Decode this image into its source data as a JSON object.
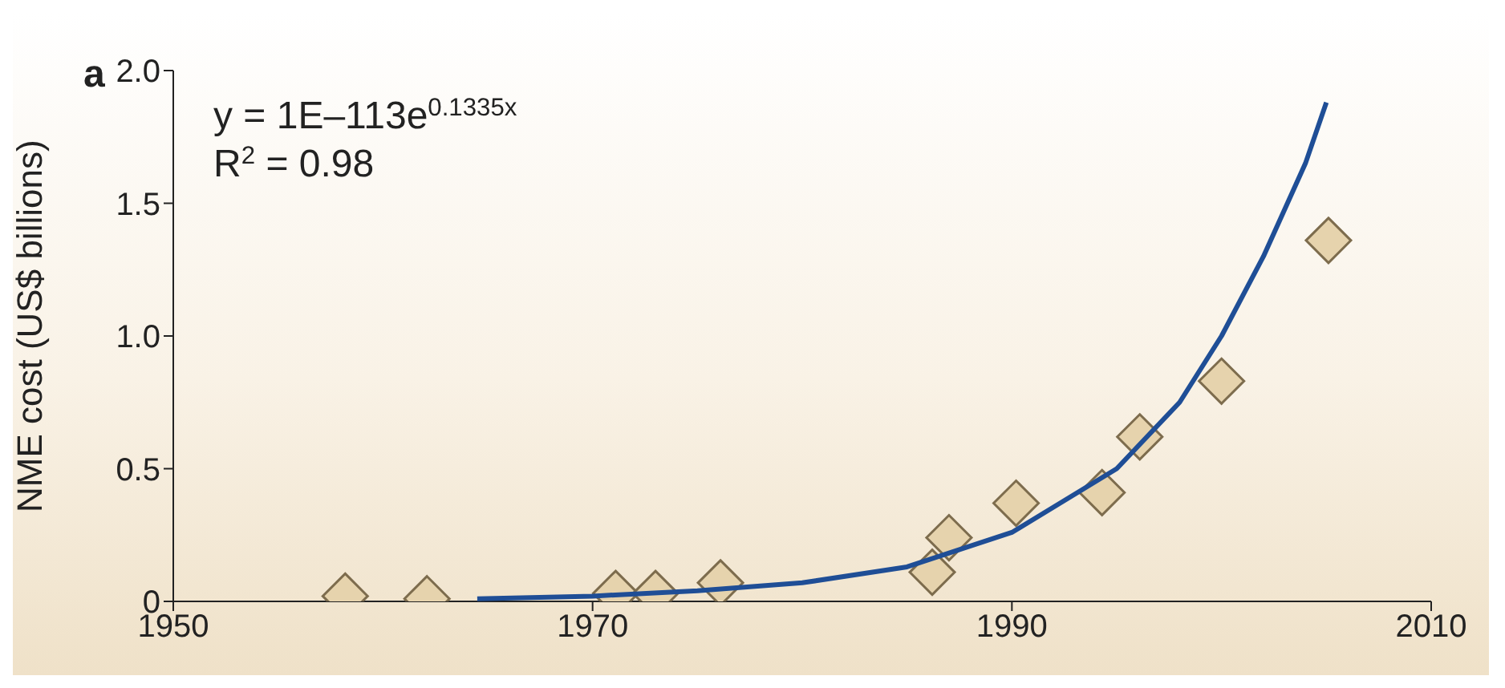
{
  "chart_data": {
    "type": "scatter",
    "ylabel": "NME cost (US$ billions)",
    "annotations": [
      "a",
      "y = 1E–113e$^{0.1335x}$",
      "R$^{2}$ = 0.98"
    ],
    "xlim": [
      1950,
      2010
    ],
    "xticks": [
      1950,
      1970,
      1990,
      2010
    ],
    "ylim": [
      0,
      2
    ],
    "yticks": [
      0,
      0.5,
      {
        "value": 1,
        "label": "1.0"
      },
      1.5,
      {
        "value": 2,
        "label": "2.0"
      }
    ],
    "grid": false,
    "legend": false,
    "series": [
      {
        "type": "scatter",
        "marker": "diamond",
        "color": "#e6d3ad",
        "x": [
          1958.2,
          1962.1,
          1971.1,
          1973.0,
          1976.1,
          1986.2,
          1987.0,
          1990.2,
          1994.3,
          1996.1,
          2000.0,
          2005.1
        ],
        "values": [
          0.02,
          0.01,
          0.03,
          0.03,
          0.07,
          0.11,
          0.24,
          0.37,
          0.41,
          0.62,
          0.83,
          1.36
        ]
      },
      {
        "type": "line",
        "marker": "none",
        "color": "#1f4e96",
        "x": [
          1964.5,
          1970,
          1975,
          1980,
          1985,
          1990,
          1995,
          1998,
          2000,
          2002,
          2004,
          2005
        ],
        "values": [
          0.01,
          0.02,
          0.04,
          0.07,
          0.13,
          0.26,
          0.5,
          0.75,
          1.0,
          1.3,
          1.65,
          1.88
        ]
      }
    ]
  }
}
